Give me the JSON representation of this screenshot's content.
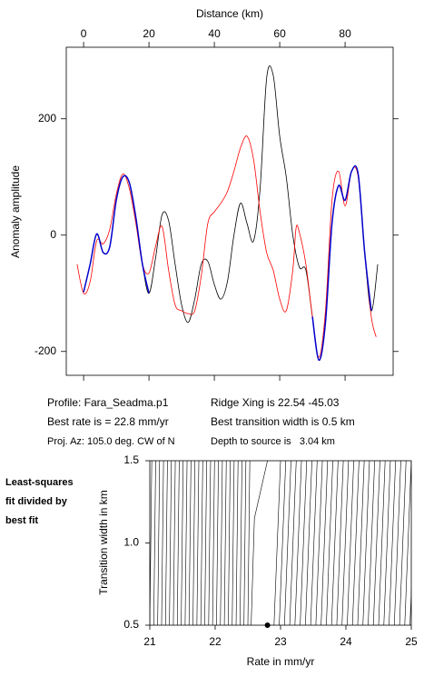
{
  "chart_data": [
    {
      "type": "line",
      "title": "Distance (km)",
      "y_label": "Anomaly amplitude",
      "xlim": [
        -5.3,
        94.7
      ],
      "xticks": [
        0,
        20,
        40,
        60,
        80
      ],
      "ylim": [
        -241,
        323
      ],
      "yticks": [
        -200,
        0,
        200
      ],
      "series": [
        {
          "color": "#000000",
          "x": [
            0,
            2,
            4,
            6,
            8,
            10,
            12,
            14,
            16,
            18,
            20,
            22,
            24,
            26,
            28,
            30,
            32,
            34,
            36,
            38,
            40,
            42,
            44,
            46,
            48,
            50,
            52,
            54,
            56,
            58,
            60,
            62,
            64,
            66,
            68,
            70,
            72,
            74,
            76,
            78,
            80,
            82,
            84,
            86,
            88,
            90
          ],
          "values": [
            -98,
            -50,
            2,
            -30,
            -20,
            60,
            100,
            90,
            30,
            -50,
            -100,
            -40,
            35,
            25,
            -50,
            -120,
            -150,
            -110,
            -50,
            -45,
            -85,
            -110,
            -80,
            0,
            55,
            20,
            -10,
            80,
            270,
            275,
            170,
            100,
            0,
            -55,
            -60,
            -140,
            -215,
            -150,
            20,
            85,
            60,
            110,
            105,
            -30,
            -130,
            -50
          ]
        },
        {
          "color": "#ff0000",
          "x": [
            -2,
            0,
            2,
            4,
            6,
            8,
            10,
            12,
            14,
            16,
            18,
            20,
            22,
            24,
            26,
            28,
            30,
            32,
            34,
            36,
            38,
            40,
            42,
            44,
            46,
            48,
            50,
            52,
            54,
            56,
            58,
            60,
            62,
            64,
            65,
            66,
            68,
            70,
            72,
            74,
            76,
            78,
            80,
            82,
            84,
            86,
            88,
            89.5
          ],
          "values": [
            -50,
            -100,
            -80,
            -10,
            -15,
            10,
            70,
            105,
            80,
            20,
            -50,
            -65,
            -20,
            15,
            -60,
            -120,
            -130,
            -135,
            -130,
            -70,
            20,
            40,
            55,
            75,
            110,
            150,
            170,
            130,
            40,
            -30,
            -60,
            -110,
            -130,
            -60,
            12,
            5,
            -50,
            -140,
            -210,
            -130,
            60,
            110,
            50,
            110,
            100,
            -30,
            -140,
            -175
          ]
        },
        {
          "color": "#0000cc",
          "x": [
            0,
            2,
            4,
            6,
            8,
            10,
            12,
            14,
            16,
            18,
            20,
            22,
            24,
            26,
            28,
            30,
            32,
            34,
            36,
            38,
            40,
            42,
            44,
            46,
            48,
            50,
            52,
            54,
            56,
            58,
            60,
            62,
            64,
            66,
            68,
            70,
            72,
            74,
            76,
            78,
            80,
            82,
            84,
            86,
            88,
            90
          ],
          "values": [
            -98,
            -50,
            2,
            -30,
            -20,
            60,
            100,
            90,
            30,
            -50,
            -100,
            null,
            null,
            null,
            null,
            null,
            null,
            null,
            null,
            null,
            null,
            null,
            null,
            null,
            null,
            null,
            null,
            null,
            null,
            null,
            null,
            null,
            null,
            null,
            null,
            -140,
            -215,
            -150,
            20,
            85,
            60,
            110,
            105,
            -30,
            -130,
            null
          ]
        }
      ],
      "annotations": [
        "Profile: Fara_Seadma.p1",
        "Best rate is = 22.8 mm/yr",
        "Proj. Az: 105.0 deg. CW of N",
        "Ridge Xing is 22.54 -45.03",
        "Best transition width is 0.5 km",
        "Depth to source is   3.04 km"
      ]
    },
    {
      "type": "contour",
      "x_label": "Rate in mm/yr",
      "y_label": "Transition width in km",
      "xlim": [
        21,
        25
      ],
      "xticks": [
        21,
        22,
        23,
        24,
        25
      ],
      "ylim": [
        0.5,
        1.5
      ],
      "yticks": [
        0.5,
        {
          "value": 1,
          "label": "1.0"
        },
        1.5
      ],
      "contours": {
        "rate_at_0_5": [
          21,
          21.06,
          21.12,
          21.18,
          21.24,
          21.3,
          21.36,
          21.42,
          21.48,
          21.54,
          21.6,
          21.66,
          21.72,
          21.78,
          21.84,
          21.9,
          21.96,
          22.02,
          22.08,
          22.14,
          22.2,
          22.26,
          22.32,
          22.38,
          22.44,
          22.5,
          22.9,
          22.98,
          23.06,
          23.14,
          23.22,
          23.3,
          23.38,
          23.46,
          23.54,
          23.62,
          23.7,
          23.78,
          23.86,
          23.94,
          24.02,
          24.1,
          24.18,
          24.26,
          24.34,
          24.42,
          24.5,
          24.58,
          24.66,
          24.74,
          24.82,
          24.9,
          24.98
        ],
        "rate_at_1_5": [
          21.03,
          21.09,
          21.15,
          21.21,
          21.27,
          21.33,
          21.39,
          21.45,
          21.51,
          21.57,
          21.63,
          21.69,
          21.75,
          21.81,
          21.87,
          21.93,
          21.99,
          22.05,
          22.11,
          22.17,
          22.23,
          22.29,
          22.35,
          22.41,
          22.47,
          22.53,
          23,
          23.08,
          23.16,
          23.24,
          23.32,
          23.4,
          23.48,
          23.56,
          23.64,
          23.72,
          23.8,
          23.88,
          23.96,
          24.04,
          24.12,
          24.2,
          24.28,
          24.36,
          24.44,
          24.52,
          24.6,
          24.68,
          24.76,
          24.84,
          24.92,
          25,
          25.08
        ]
      },
      "curve": {
        "x": [
          22.55,
          22.6,
          22.8
        ],
        "values": [
          0.5,
          1.15,
          1.5
        ]
      },
      "best_fit": {
        "x": 22.8,
        "value": 0.5
      },
      "annotations": [
        "Least-squares",
        "fit divided by",
        "best fit"
      ]
    }
  ]
}
